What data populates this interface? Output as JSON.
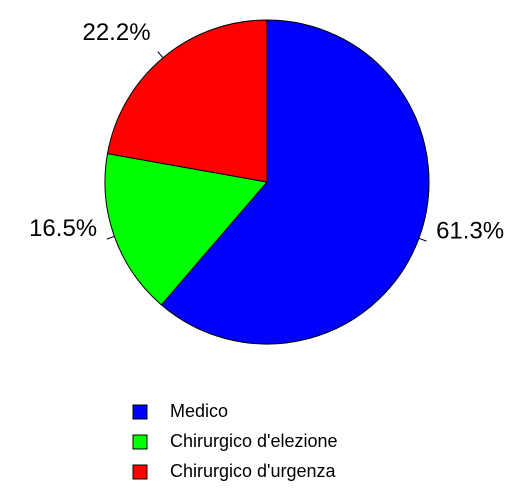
{
  "chart_data": {
    "type": "pie",
    "categories": [
      "Medico",
      "Chirurgico d'elezione",
      "Chirurgico d'urgenza"
    ],
    "values": [
      61.3,
      16.5,
      22.2
    ],
    "value_labels": [
      "61.3%",
      "16.5%",
      "22.2%"
    ],
    "colors": [
      "#0000ff",
      "#00ff00",
      "#ff0000"
    ]
  }
}
